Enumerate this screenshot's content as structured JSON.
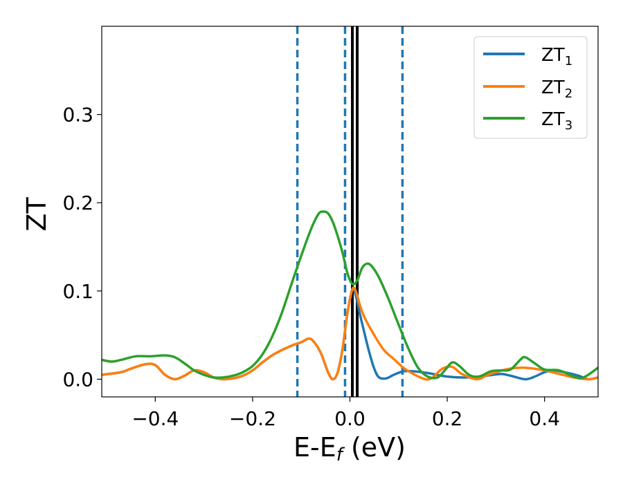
{
  "chart_data": {
    "type": "line",
    "title": "",
    "xlabel": "E-E",
    "xlabel_sub": "f",
    "xlabel_unit": " (eV)",
    "ylabel": "ZT",
    "xlim": [
      -0.51,
      0.51
    ],
    "ylim": [
      -0.02,
      0.4
    ],
    "x_ticks": [
      -0.4,
      -0.2,
      0.0,
      0.2,
      0.4
    ],
    "x_tick_labels": [
      "−0.4",
      "−0.2",
      "0.0",
      "0.2",
      "0.4"
    ],
    "y_ticks": [
      0.0,
      0.1,
      0.2,
      0.3
    ],
    "y_tick_labels": [
      "0.0",
      "0.1",
      "0.2",
      "0.3"
    ],
    "grid": false,
    "legend_position": "top-right",
    "series": [
      {
        "name": "ZT",
        "name_sub": "1",
        "color": "#1f77b4",
        "points": [
          [
            -0.51,
            0.005
          ],
          [
            -0.47,
            0.008
          ],
          [
            -0.45,
            0.012
          ],
          [
            -0.42,
            0.017
          ],
          [
            -0.4,
            0.016
          ],
          [
            -0.38,
            0.005
          ],
          [
            -0.36,
            0.0
          ],
          [
            -0.34,
            0.004
          ],
          [
            -0.32,
            0.01
          ],
          [
            -0.3,
            0.008
          ],
          [
            -0.28,
            0.002
          ],
          [
            -0.26,
            0.0
          ],
          [
            -0.24,
            0.001
          ],
          [
            -0.22,
            0.004
          ],
          [
            -0.2,
            0.01
          ],
          [
            -0.18,
            0.019
          ],
          [
            -0.16,
            0.027
          ],
          [
            -0.14,
            0.033
          ],
          [
            -0.12,
            0.038
          ],
          [
            -0.1,
            0.042
          ],
          [
            -0.085,
            0.046
          ],
          [
            -0.075,
            0.043
          ],
          [
            -0.06,
            0.03
          ],
          [
            -0.045,
            0.008
          ],
          [
            -0.035,
            0.0
          ],
          [
            -0.025,
            0.008
          ],
          [
            -0.015,
            0.035
          ],
          [
            -0.005,
            0.075
          ],
          [
            0.005,
            0.102
          ],
          [
            0.012,
            0.095
          ],
          [
            0.02,
            0.075
          ],
          [
            0.03,
            0.052
          ],
          [
            0.04,
            0.03
          ],
          [
            0.05,
            0.012
          ],
          [
            0.06,
            0.002
          ],
          [
            0.075,
            0.001
          ],
          [
            0.09,
            0.005
          ],
          [
            0.11,
            0.009
          ],
          [
            0.13,
            0.009
          ],
          [
            0.16,
            0.007
          ],
          [
            0.2,
            0.003
          ],
          [
            0.24,
            0.002
          ],
          [
            0.28,
            0.004
          ],
          [
            0.31,
            0.006
          ],
          [
            0.33,
            0.004
          ],
          [
            0.36,
            0.0
          ],
          [
            0.38,
            0.003
          ],
          [
            0.4,
            0.008
          ],
          [
            0.42,
            0.01
          ],
          [
            0.44,
            0.008
          ],
          [
            0.47,
            0.004
          ],
          [
            0.49,
            0.0
          ],
          [
            0.51,
            0.002
          ]
        ]
      },
      {
        "name": "ZT",
        "name_sub": "2",
        "color": "#ff7f0e",
        "points": [
          [
            -0.51,
            0.005
          ],
          [
            -0.47,
            0.008
          ],
          [
            -0.45,
            0.012
          ],
          [
            -0.42,
            0.017
          ],
          [
            -0.4,
            0.016
          ],
          [
            -0.38,
            0.005
          ],
          [
            -0.36,
            0.0
          ],
          [
            -0.34,
            0.004
          ],
          [
            -0.32,
            0.01
          ],
          [
            -0.3,
            0.008
          ],
          [
            -0.28,
            0.002
          ],
          [
            -0.26,
            0.0
          ],
          [
            -0.24,
            0.001
          ],
          [
            -0.22,
            0.004
          ],
          [
            -0.2,
            0.01
          ],
          [
            -0.18,
            0.019
          ],
          [
            -0.16,
            0.027
          ],
          [
            -0.14,
            0.033
          ],
          [
            -0.12,
            0.038
          ],
          [
            -0.1,
            0.042
          ],
          [
            -0.085,
            0.046
          ],
          [
            -0.075,
            0.043
          ],
          [
            -0.06,
            0.03
          ],
          [
            -0.045,
            0.008
          ],
          [
            -0.035,
            0.0
          ],
          [
            -0.025,
            0.008
          ],
          [
            -0.015,
            0.035
          ],
          [
            -0.005,
            0.075
          ],
          [
            0.005,
            0.102
          ],
          [
            0.012,
            0.1
          ],
          [
            0.02,
            0.085
          ],
          [
            0.03,
            0.07
          ],
          [
            0.05,
            0.05
          ],
          [
            0.07,
            0.033
          ],
          [
            0.09,
            0.023
          ],
          [
            0.11,
            0.013
          ],
          [
            0.13,
            0.006
          ],
          [
            0.155,
            0.0
          ],
          [
            0.17,
            0.002
          ],
          [
            0.19,
            0.012
          ],
          [
            0.21,
            0.014
          ],
          [
            0.23,
            0.006
          ],
          [
            0.26,
            0.0
          ],
          [
            0.28,
            0.004
          ],
          [
            0.3,
            0.008
          ],
          [
            0.33,
            0.012
          ],
          [
            0.36,
            0.013
          ],
          [
            0.4,
            0.01
          ],
          [
            0.43,
            0.006
          ],
          [
            0.46,
            0.002
          ],
          [
            0.49,
            0.0
          ],
          [
            0.51,
            0.002
          ]
        ]
      },
      {
        "name": "ZT",
        "name_sub": "3",
        "color": "#2ca02c",
        "points": [
          [
            -0.51,
            0.022
          ],
          [
            -0.49,
            0.02
          ],
          [
            -0.47,
            0.022
          ],
          [
            -0.44,
            0.026
          ],
          [
            -0.41,
            0.026
          ],
          [
            -0.38,
            0.027
          ],
          [
            -0.36,
            0.025
          ],
          [
            -0.34,
            0.018
          ],
          [
            -0.32,
            0.01
          ],
          [
            -0.3,
            0.005
          ],
          [
            -0.28,
            0.002
          ],
          [
            -0.26,
            0.002
          ],
          [
            -0.24,
            0.004
          ],
          [
            -0.22,
            0.008
          ],
          [
            -0.2,
            0.015
          ],
          [
            -0.18,
            0.028
          ],
          [
            -0.16,
            0.048
          ],
          [
            -0.14,
            0.075
          ],
          [
            -0.12,
            0.108
          ],
          [
            -0.1,
            0.14
          ],
          [
            -0.08,
            0.17
          ],
          [
            -0.065,
            0.187
          ],
          [
            -0.055,
            0.19
          ],
          [
            -0.045,
            0.188
          ],
          [
            -0.035,
            0.178
          ],
          [
            -0.025,
            0.162
          ],
          [
            -0.015,
            0.143
          ],
          [
            -0.005,
            0.12
          ],
          [
            0.005,
            0.108
          ],
          [
            0.015,
            0.112
          ],
          [
            0.025,
            0.126
          ],
          [
            0.035,
            0.131
          ],
          [
            0.045,
            0.128
          ],
          [
            0.06,
            0.115
          ],
          [
            0.08,
            0.09
          ],
          [
            0.1,
            0.062
          ],
          [
            0.12,
            0.035
          ],
          [
            0.14,
            0.013
          ],
          [
            0.16,
            0.003
          ],
          [
            0.18,
            0.002
          ],
          [
            0.195,
            0.01
          ],
          [
            0.21,
            0.019
          ],
          [
            0.225,
            0.015
          ],
          [
            0.245,
            0.005
          ],
          [
            0.265,
            0.003
          ],
          [
            0.29,
            0.009
          ],
          [
            0.31,
            0.01
          ],
          [
            0.33,
            0.011
          ],
          [
            0.35,
            0.022
          ],
          [
            0.36,
            0.025
          ],
          [
            0.38,
            0.018
          ],
          [
            0.4,
            0.011
          ],
          [
            0.43,
            0.01
          ],
          [
            0.46,
            0.003
          ],
          [
            0.48,
            0.002
          ],
          [
            0.51,
            0.013
          ]
        ]
      }
    ],
    "vertical_lines": [
      {
        "x": -0.108,
        "style": "dashed",
        "color": "#1f77b4"
      },
      {
        "x": -0.01,
        "style": "dashed",
        "color": "#1f77b4"
      },
      {
        "x": 0.108,
        "style": "dashed",
        "color": "#1f77b4"
      },
      {
        "x": 0.005,
        "style": "solid",
        "color": "#000000"
      },
      {
        "x": 0.015,
        "style": "solid",
        "color": "#000000"
      }
    ]
  }
}
